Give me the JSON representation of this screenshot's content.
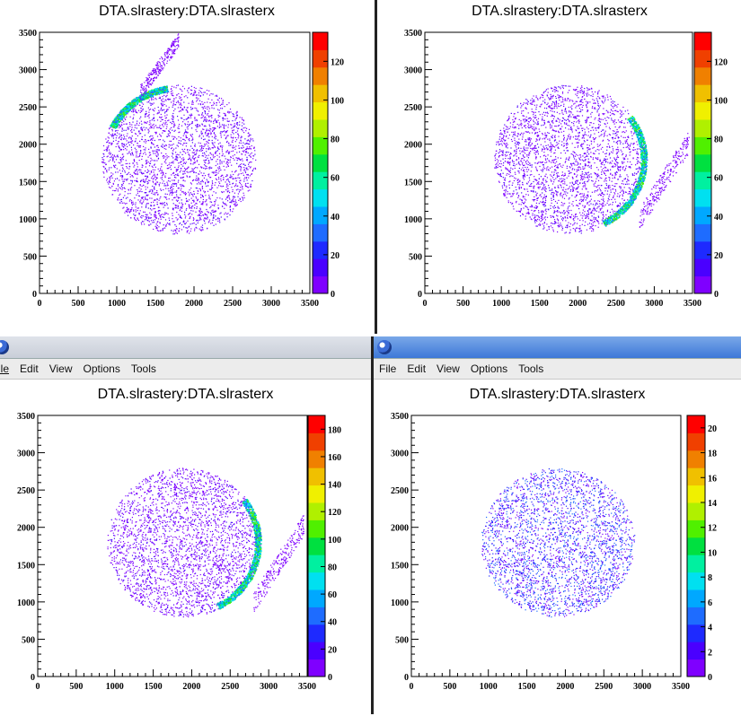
{
  "windows": [
    {
      "id": "top-left",
      "has_menu": false,
      "title": "DTA.slrastery:DTA.slrasterx",
      "xticks": [
        "0",
        "500",
        "1000",
        "1500",
        "2000",
        "2500",
        "3000",
        "3500"
      ],
      "yticks": [
        "0",
        "500",
        "1000",
        "1500",
        "2000",
        "2500",
        "3000",
        "3500"
      ],
      "zticks": [
        "0",
        "20",
        "40",
        "60",
        "80",
        "100",
        "120"
      ],
      "zmax": 135,
      "crescent_side": "upper-left"
    },
    {
      "id": "top-right",
      "has_menu": false,
      "title": "DTA.slrastery:DTA.slrasterx",
      "xticks": [
        "0",
        "500",
        "1000",
        "1500",
        "2000",
        "2500",
        "3000",
        "3500"
      ],
      "yticks": [
        "0",
        "500",
        "1000",
        "1500",
        "2000",
        "2500",
        "3000",
        "3500"
      ],
      "zticks": [
        "0",
        "20",
        "40",
        "60",
        "80",
        "100",
        "120"
      ],
      "zmax": 135,
      "crescent_side": "right"
    },
    {
      "id": "bottom-left",
      "has_menu": true,
      "title": "DTA.slrastery:DTA.slrasterx",
      "menu": [
        "File",
        "Edit",
        "View",
        "Options",
        "Tools"
      ],
      "xticks": [
        "0",
        "500",
        "1000",
        "1500",
        "2000",
        "2500",
        "3000",
        "3500"
      ],
      "yticks": [
        "0",
        "500",
        "1000",
        "1500",
        "2000",
        "2500",
        "3000",
        "3500"
      ],
      "zticks": [
        "0",
        "20",
        "40",
        "60",
        "80",
        "100",
        "120",
        "140",
        "160",
        "180"
      ],
      "zmax": 190,
      "crescent_side": "right"
    },
    {
      "id": "bottom-right",
      "has_menu": true,
      "title": "DTA.slrastery:DTA.slrasterx",
      "menu": [
        "File",
        "Edit",
        "View",
        "Options",
        "Tools"
      ],
      "xticks": [
        "0",
        "500",
        "1000",
        "1500",
        "2000",
        "2500",
        "3000",
        "3500"
      ],
      "yticks": [
        "0",
        "500",
        "1000",
        "1500",
        "2000",
        "2500",
        "3000",
        "3500"
      ],
      "zticks": [
        "0",
        "2",
        "4",
        "6",
        "8",
        "10",
        "12",
        "14",
        "16",
        "18",
        "20"
      ],
      "zmax": 21,
      "crescent_side": "none"
    }
  ],
  "palette": [
    "#7f00ff",
    "#4a00ff",
    "#1e2aff",
    "#1e6cff",
    "#00a8ff",
    "#00e0f0",
    "#00f0a0",
    "#00e040",
    "#50f000",
    "#b0f000",
    "#f0f000",
    "#f0c000",
    "#f08000",
    "#f04000",
    "#ff0000"
  ],
  "menubar_left": [
    "File",
    "Edit",
    "View",
    "Options",
    "Tools"
  ],
  "menubar_right": [
    "File",
    "Edit",
    "View",
    "Options",
    "Tools"
  ],
  "mini_left_menu": "ile"
}
